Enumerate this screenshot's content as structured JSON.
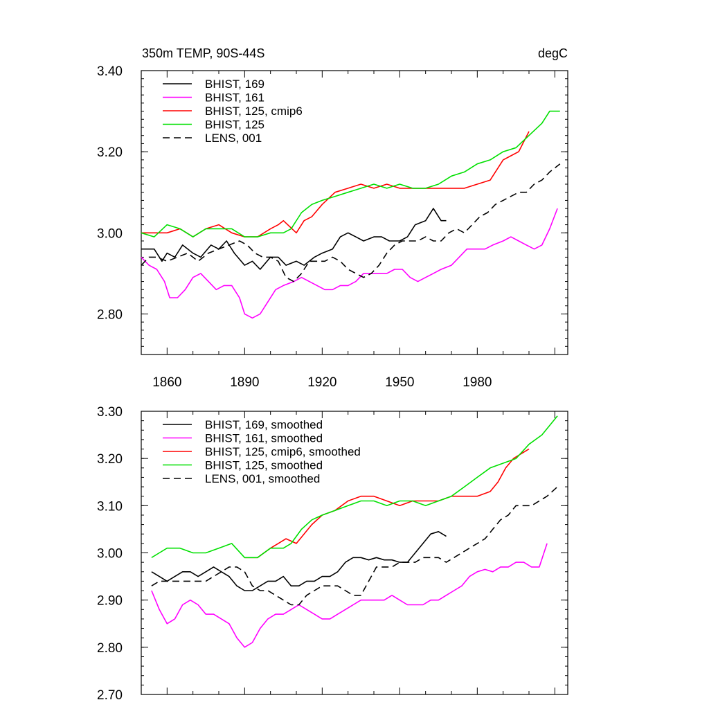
{
  "chart_data": [
    {
      "type": "line",
      "title": "350m TEMP, 90S-44S",
      "units": "degC",
      "ylim": [
        2.7,
        3.4
      ],
      "xlim": [
        1850,
        2015
      ],
      "y_ticks": [
        2.8,
        3.0,
        3.2,
        3.4
      ],
      "y_tick_labels": [
        "2.80",
        "3.00",
        "3.20",
        "3.40"
      ],
      "x_ticks": [
        1860,
        1890,
        1920,
        1950,
        1980
      ],
      "x_tick_labels": [
        "1860",
        "1890",
        "1920",
        "1950",
        "1980"
      ],
      "legend_position": "top-left",
      "series": [
        {
          "name": "BHIST, 169",
          "color": "#000000",
          "dash": "solid",
          "x": [
            1850,
            1855,
            1858,
            1860,
            1863,
            1866,
            1870,
            1873,
            1877,
            1880,
            1883,
            1886,
            1890,
            1893,
            1896,
            1900,
            1903,
            1906,
            1910,
            1913,
            1917,
            1920,
            1924,
            1927,
            1930,
            1933,
            1936,
            1940,
            1943,
            1946,
            1950,
            1953,
            1956,
            1960,
            1963,
            1966,
            1968
          ],
          "y": [
            2.96,
            2.96,
            2.93,
            2.95,
            2.94,
            2.97,
            2.95,
            2.94,
            2.97,
            2.96,
            2.98,
            2.95,
            2.92,
            2.93,
            2.91,
            2.94,
            2.94,
            2.92,
            2.93,
            2.92,
            2.94,
            2.95,
            2.96,
            2.99,
            3.0,
            2.99,
            2.98,
            2.99,
            2.99,
            2.98,
            2.98,
            2.99,
            3.02,
            3.03,
            3.06,
            3.03,
            3.03
          ]
        },
        {
          "name": "BHIST, 161",
          "color": "#ff00ff",
          "dash": "solid",
          "x": [
            1850,
            1853,
            1856,
            1859,
            1861,
            1864,
            1867,
            1870,
            1873,
            1876,
            1879,
            1882,
            1885,
            1888,
            1890,
            1893,
            1896,
            1899,
            1902,
            1905,
            1909,
            1912,
            1915,
            1918,
            1921,
            1924,
            1927,
            1930,
            1933,
            1936,
            1939,
            1942,
            1945,
            1948,
            1951,
            1954,
            1957,
            1960,
            1963,
            1966,
            1970,
            1973,
            1976,
            1980,
            1983,
            1986,
            1990,
            1993,
            1996,
            1999,
            2002,
            2005,
            2008,
            2011
          ],
          "y": [
            2.94,
            2.92,
            2.91,
            2.88,
            2.84,
            2.84,
            2.86,
            2.89,
            2.9,
            2.88,
            2.86,
            2.87,
            2.87,
            2.84,
            2.8,
            2.79,
            2.8,
            2.83,
            2.86,
            2.87,
            2.88,
            2.89,
            2.88,
            2.87,
            2.86,
            2.86,
            2.87,
            2.87,
            2.88,
            2.9,
            2.9,
            2.9,
            2.9,
            2.91,
            2.91,
            2.89,
            2.88,
            2.89,
            2.9,
            2.91,
            2.92,
            2.94,
            2.96,
            2.96,
            2.96,
            2.97,
            2.98,
            2.99,
            2.98,
            2.97,
            2.96,
            2.97,
            3.01,
            3.06
          ]
        },
        {
          "name": "BHIST, 125, cmip6",
          "color": "#ff0000",
          "dash": "solid",
          "x": [
            1850,
            1855,
            1860,
            1865,
            1870,
            1875,
            1880,
            1885,
            1890,
            1895,
            1900,
            1903,
            1905,
            1910,
            1913,
            1916,
            1920,
            1925,
            1930,
            1935,
            1940,
            1945,
            1950,
            1955,
            1960,
            1965,
            1970,
            1975,
            1980,
            1985,
            1990,
            1993,
            1996,
            2000
          ],
          "y": [
            3.0,
            3.0,
            3.0,
            3.01,
            2.99,
            3.01,
            3.02,
            3.0,
            2.99,
            2.99,
            3.01,
            3.02,
            3.03,
            3.0,
            3.03,
            3.04,
            3.07,
            3.1,
            3.11,
            3.12,
            3.11,
            3.12,
            3.11,
            3.11,
            3.11,
            3.11,
            3.11,
            3.11,
            3.12,
            3.13,
            3.18,
            3.19,
            3.2,
            3.25
          ]
        },
        {
          "name": "BHIST, 125",
          "color": "#00e000",
          "dash": "solid",
          "x": [
            1850,
            1855,
            1860,
            1865,
            1870,
            1875,
            1880,
            1885,
            1890,
            1895,
            1900,
            1905,
            1908,
            1912,
            1916,
            1920,
            1925,
            1930,
            1935,
            1940,
            1945,
            1950,
            1955,
            1960,
            1965,
            1970,
            1975,
            1980,
            1985,
            1990,
            1995,
            2000,
            2005,
            2008,
            2012
          ],
          "y": [
            3.0,
            2.99,
            3.02,
            3.01,
            2.99,
            3.01,
            3.01,
            3.01,
            2.99,
            2.99,
            3.0,
            3.0,
            3.01,
            3.05,
            3.07,
            3.08,
            3.09,
            3.1,
            3.11,
            3.12,
            3.11,
            3.12,
            3.11,
            3.11,
            3.12,
            3.14,
            3.15,
            3.17,
            3.18,
            3.2,
            3.21,
            3.24,
            3.27,
            3.3,
            3.3
          ]
        },
        {
          "name": "LENS, 001",
          "color": "#000000",
          "dash": "dashed",
          "x": [
            1850,
            1853,
            1856,
            1860,
            1864,
            1868,
            1872,
            1876,
            1880,
            1884,
            1888,
            1891,
            1894,
            1897,
            1900,
            1903,
            1906,
            1909,
            1912,
            1915,
            1918,
            1921,
            1924,
            1927,
            1930,
            1933,
            1936,
            1939,
            1942,
            1945,
            1948,
            1951,
            1954,
            1957,
            1960,
            1963,
            1966,
            1969,
            1972,
            1975,
            1978,
            1981,
            1984,
            1987,
            1990,
            1993,
            1996,
            1999,
            2002,
            2005,
            2008,
            2012
          ],
          "y": [
            2.92,
            2.94,
            2.94,
            2.93,
            2.94,
            2.95,
            2.93,
            2.95,
            2.96,
            2.97,
            2.98,
            2.97,
            2.95,
            2.94,
            2.94,
            2.93,
            2.89,
            2.88,
            2.9,
            2.93,
            2.93,
            2.93,
            2.94,
            2.93,
            2.91,
            2.9,
            2.89,
            2.9,
            2.92,
            2.95,
            2.97,
            2.98,
            2.98,
            2.98,
            2.99,
            2.98,
            2.98,
            3.0,
            3.01,
            3.0,
            3.02,
            3.04,
            3.05,
            3.07,
            3.08,
            3.09,
            3.1,
            3.1,
            3.12,
            3.13,
            3.15,
            3.17
          ]
        }
      ]
    },
    {
      "type": "line",
      "ylim": [
        2.7,
        3.3
      ],
      "xlim": [
        1850,
        2015
      ],
      "y_ticks": [
        2.7,
        2.8,
        2.9,
        3.0,
        3.1,
        3.2,
        3.3
      ],
      "y_tick_labels": [
        "2.70",
        "2.80",
        "2.90",
        "3.00",
        "3.10",
        "3.20",
        "3.30"
      ],
      "legend_position": "top-left",
      "series": [
        {
          "name": "BHIST, 169, smoothed",
          "color": "#000000",
          "dash": "solid",
          "x": [
            1854,
            1857,
            1860,
            1863,
            1866,
            1869,
            1872,
            1875,
            1878,
            1881,
            1884,
            1887,
            1890,
            1893,
            1896,
            1899,
            1902,
            1905,
            1908,
            1911,
            1914,
            1917,
            1920,
            1923,
            1926,
            1929,
            1932,
            1935,
            1938,
            1941,
            1944,
            1947,
            1950,
            1953,
            1956,
            1959,
            1962,
            1965,
            1968
          ],
          "y": [
            2.96,
            2.95,
            2.94,
            2.95,
            2.96,
            2.96,
            2.95,
            2.96,
            2.97,
            2.96,
            2.95,
            2.93,
            2.92,
            2.92,
            2.93,
            2.94,
            2.94,
            2.95,
            2.93,
            2.93,
            2.94,
            2.94,
            2.95,
            2.95,
            2.96,
            2.98,
            2.99,
            2.99,
            2.985,
            2.99,
            2.985,
            2.985,
            2.98,
            2.98,
            3.0,
            3.02,
            3.04,
            3.045,
            3.035
          ]
        },
        {
          "name": "BHIST, 161, smoothed",
          "color": "#ff00ff",
          "dash": "solid",
          "x": [
            1854,
            1857,
            1860,
            1863,
            1866,
            1869,
            1872,
            1875,
            1878,
            1881,
            1884,
            1887,
            1890,
            1893,
            1896,
            1899,
            1902,
            1905,
            1908,
            1911,
            1914,
            1917,
            1920,
            1923,
            1926,
            1929,
            1932,
            1935,
            1938,
            1941,
            1944,
            1947,
            1950,
            1953,
            1956,
            1959,
            1962,
            1965,
            1968,
            1971,
            1974,
            1977,
            1980,
            1983,
            1986,
            1989,
            1992,
            1995,
            1998,
            2001,
            2004,
            2007
          ],
          "y": [
            2.92,
            2.88,
            2.85,
            2.86,
            2.89,
            2.9,
            2.89,
            2.87,
            2.87,
            2.86,
            2.85,
            2.82,
            2.8,
            2.81,
            2.84,
            2.86,
            2.87,
            2.87,
            2.88,
            2.89,
            2.88,
            2.87,
            2.86,
            2.86,
            2.87,
            2.88,
            2.89,
            2.9,
            2.9,
            2.9,
            2.9,
            2.91,
            2.9,
            2.89,
            2.89,
            2.89,
            2.9,
            2.9,
            2.91,
            2.92,
            2.93,
            2.95,
            2.96,
            2.965,
            2.96,
            2.97,
            2.97,
            2.98,
            2.98,
            2.97,
            2.97,
            3.02
          ]
        },
        {
          "name": "BHIST, 125, cmip6, smoothed",
          "color": "#ff0000",
          "dash": "solid",
          "x": [
            1890,
            1895,
            1900,
            1903,
            1906,
            1910,
            1913,
            1916,
            1920,
            1925,
            1930,
            1935,
            1940,
            1945,
            1950,
            1955,
            1960,
            1965,
            1970,
            1975,
            1980,
            1985,
            1988,
            1991,
            1994,
            1997,
            2000
          ],
          "y": [
            2.99,
            2.99,
            3.01,
            3.02,
            3.03,
            3.02,
            3.04,
            3.06,
            3.08,
            3.09,
            3.11,
            3.12,
            3.12,
            3.11,
            3.1,
            3.11,
            3.11,
            3.11,
            3.12,
            3.12,
            3.12,
            3.13,
            3.15,
            3.18,
            3.2,
            3.21,
            3.22
          ]
        },
        {
          "name": "BHIST, 125, smoothed",
          "color": "#00e000",
          "dash": "solid",
          "x": [
            1854,
            1857,
            1860,
            1865,
            1870,
            1875,
            1880,
            1885,
            1890,
            1895,
            1900,
            1905,
            1908,
            1912,
            1916,
            1920,
            1925,
            1930,
            1935,
            1940,
            1945,
            1950,
            1955,
            1960,
            1965,
            1970,
            1975,
            1980,
            1985,
            1990,
            1995,
            2000,
            2005,
            2011
          ],
          "y": [
            2.99,
            3.0,
            3.01,
            3.01,
            3.0,
            3.0,
            3.01,
            3.02,
            2.99,
            2.99,
            3.01,
            3.01,
            3.02,
            3.05,
            3.07,
            3.08,
            3.09,
            3.1,
            3.11,
            3.11,
            3.1,
            3.11,
            3.11,
            3.1,
            3.11,
            3.12,
            3.14,
            3.16,
            3.18,
            3.19,
            3.2,
            3.23,
            3.25,
            3.29
          ]
        },
        {
          "name": "LENS, 001, smoothed",
          "color": "#000000",
          "dash": "dashed",
          "x": [
            1854,
            1857,
            1860,
            1863,
            1866,
            1869,
            1872,
            1875,
            1878,
            1881,
            1884,
            1887,
            1890,
            1893,
            1896,
            1899,
            1902,
            1905,
            1908,
            1911,
            1914,
            1917,
            1920,
            1923,
            1926,
            1929,
            1932,
            1935,
            1938,
            1941,
            1944,
            1947,
            1950,
            1953,
            1956,
            1959,
            1962,
            1965,
            1968,
            1971,
            1974,
            1977,
            1980,
            1983,
            1986,
            1989,
            1992,
            1995,
            1998,
            2001,
            2004,
            2007,
            2011
          ],
          "y": [
            2.93,
            2.94,
            2.94,
            2.94,
            2.94,
            2.94,
            2.94,
            2.94,
            2.95,
            2.96,
            2.97,
            2.97,
            2.96,
            2.93,
            2.92,
            2.92,
            2.91,
            2.9,
            2.89,
            2.89,
            2.91,
            2.92,
            2.93,
            2.93,
            2.93,
            2.92,
            2.91,
            2.91,
            2.94,
            2.97,
            2.97,
            2.97,
            2.98,
            2.98,
            2.98,
            2.99,
            2.99,
            2.99,
            2.98,
            2.99,
            3.0,
            3.01,
            3.02,
            3.03,
            3.05,
            3.07,
            3.08,
            3.1,
            3.1,
            3.1,
            3.11,
            3.12,
            3.14
          ]
        }
      ]
    }
  ]
}
